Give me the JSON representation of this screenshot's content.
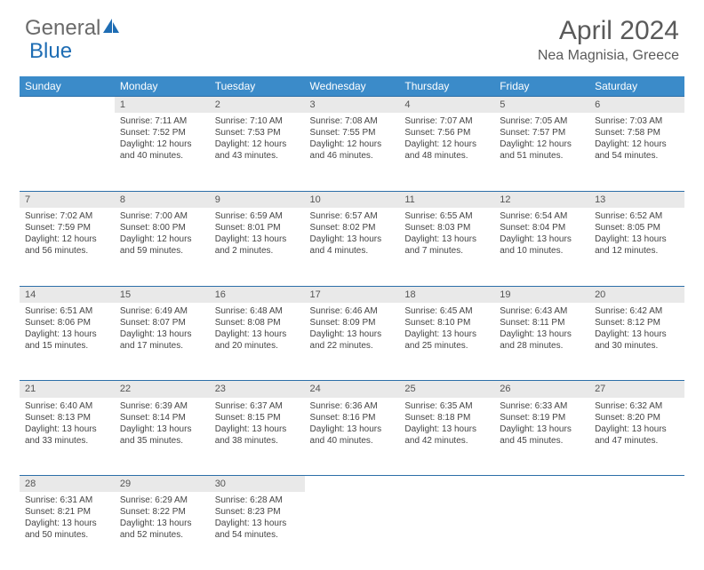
{
  "logo": {
    "general": "General",
    "blue": "Blue"
  },
  "title": "April 2024",
  "location": "Nea Magnisia, Greece",
  "colors": {
    "header_bg": "#3b8bc9",
    "row_divider": "#2c6fa8",
    "daynum_bg": "#e9e9e9",
    "text": "#444444",
    "logo_blue": "#1e6db4"
  },
  "weekdays": [
    "Sunday",
    "Monday",
    "Tuesday",
    "Wednesday",
    "Thursday",
    "Friday",
    "Saturday"
  ],
  "weeks": [
    {
      "days": [
        null,
        {
          "n": "1",
          "sr": "Sunrise: 7:11 AM",
          "ss": "Sunset: 7:52 PM",
          "d1": "Daylight: 12 hours",
          "d2": "and 40 minutes."
        },
        {
          "n": "2",
          "sr": "Sunrise: 7:10 AM",
          "ss": "Sunset: 7:53 PM",
          "d1": "Daylight: 12 hours",
          "d2": "and 43 minutes."
        },
        {
          "n": "3",
          "sr": "Sunrise: 7:08 AM",
          "ss": "Sunset: 7:55 PM",
          "d1": "Daylight: 12 hours",
          "d2": "and 46 minutes."
        },
        {
          "n": "4",
          "sr": "Sunrise: 7:07 AM",
          "ss": "Sunset: 7:56 PM",
          "d1": "Daylight: 12 hours",
          "d2": "and 48 minutes."
        },
        {
          "n": "5",
          "sr": "Sunrise: 7:05 AM",
          "ss": "Sunset: 7:57 PM",
          "d1": "Daylight: 12 hours",
          "d2": "and 51 minutes."
        },
        {
          "n": "6",
          "sr": "Sunrise: 7:03 AM",
          "ss": "Sunset: 7:58 PM",
          "d1": "Daylight: 12 hours",
          "d2": "and 54 minutes."
        }
      ]
    },
    {
      "days": [
        {
          "n": "7",
          "sr": "Sunrise: 7:02 AM",
          "ss": "Sunset: 7:59 PM",
          "d1": "Daylight: 12 hours",
          "d2": "and 56 minutes."
        },
        {
          "n": "8",
          "sr": "Sunrise: 7:00 AM",
          "ss": "Sunset: 8:00 PM",
          "d1": "Daylight: 12 hours",
          "d2": "and 59 minutes."
        },
        {
          "n": "9",
          "sr": "Sunrise: 6:59 AM",
          "ss": "Sunset: 8:01 PM",
          "d1": "Daylight: 13 hours",
          "d2": "and 2 minutes."
        },
        {
          "n": "10",
          "sr": "Sunrise: 6:57 AM",
          "ss": "Sunset: 8:02 PM",
          "d1": "Daylight: 13 hours",
          "d2": "and 4 minutes."
        },
        {
          "n": "11",
          "sr": "Sunrise: 6:55 AM",
          "ss": "Sunset: 8:03 PM",
          "d1": "Daylight: 13 hours",
          "d2": "and 7 minutes."
        },
        {
          "n": "12",
          "sr": "Sunrise: 6:54 AM",
          "ss": "Sunset: 8:04 PM",
          "d1": "Daylight: 13 hours",
          "d2": "and 10 minutes."
        },
        {
          "n": "13",
          "sr": "Sunrise: 6:52 AM",
          "ss": "Sunset: 8:05 PM",
          "d1": "Daylight: 13 hours",
          "d2": "and 12 minutes."
        }
      ]
    },
    {
      "days": [
        {
          "n": "14",
          "sr": "Sunrise: 6:51 AM",
          "ss": "Sunset: 8:06 PM",
          "d1": "Daylight: 13 hours",
          "d2": "and 15 minutes."
        },
        {
          "n": "15",
          "sr": "Sunrise: 6:49 AM",
          "ss": "Sunset: 8:07 PM",
          "d1": "Daylight: 13 hours",
          "d2": "and 17 minutes."
        },
        {
          "n": "16",
          "sr": "Sunrise: 6:48 AM",
          "ss": "Sunset: 8:08 PM",
          "d1": "Daylight: 13 hours",
          "d2": "and 20 minutes."
        },
        {
          "n": "17",
          "sr": "Sunrise: 6:46 AM",
          "ss": "Sunset: 8:09 PM",
          "d1": "Daylight: 13 hours",
          "d2": "and 22 minutes."
        },
        {
          "n": "18",
          "sr": "Sunrise: 6:45 AM",
          "ss": "Sunset: 8:10 PM",
          "d1": "Daylight: 13 hours",
          "d2": "and 25 minutes."
        },
        {
          "n": "19",
          "sr": "Sunrise: 6:43 AM",
          "ss": "Sunset: 8:11 PM",
          "d1": "Daylight: 13 hours",
          "d2": "and 28 minutes."
        },
        {
          "n": "20",
          "sr": "Sunrise: 6:42 AM",
          "ss": "Sunset: 8:12 PM",
          "d1": "Daylight: 13 hours",
          "d2": "and 30 minutes."
        }
      ]
    },
    {
      "days": [
        {
          "n": "21",
          "sr": "Sunrise: 6:40 AM",
          "ss": "Sunset: 8:13 PM",
          "d1": "Daylight: 13 hours",
          "d2": "and 33 minutes."
        },
        {
          "n": "22",
          "sr": "Sunrise: 6:39 AM",
          "ss": "Sunset: 8:14 PM",
          "d1": "Daylight: 13 hours",
          "d2": "and 35 minutes."
        },
        {
          "n": "23",
          "sr": "Sunrise: 6:37 AM",
          "ss": "Sunset: 8:15 PM",
          "d1": "Daylight: 13 hours",
          "d2": "and 38 minutes."
        },
        {
          "n": "24",
          "sr": "Sunrise: 6:36 AM",
          "ss": "Sunset: 8:16 PM",
          "d1": "Daylight: 13 hours",
          "d2": "and 40 minutes."
        },
        {
          "n": "25",
          "sr": "Sunrise: 6:35 AM",
          "ss": "Sunset: 8:18 PM",
          "d1": "Daylight: 13 hours",
          "d2": "and 42 minutes."
        },
        {
          "n": "26",
          "sr": "Sunrise: 6:33 AM",
          "ss": "Sunset: 8:19 PM",
          "d1": "Daylight: 13 hours",
          "d2": "and 45 minutes."
        },
        {
          "n": "27",
          "sr": "Sunrise: 6:32 AM",
          "ss": "Sunset: 8:20 PM",
          "d1": "Daylight: 13 hours",
          "d2": "and 47 minutes."
        }
      ]
    },
    {
      "days": [
        {
          "n": "28",
          "sr": "Sunrise: 6:31 AM",
          "ss": "Sunset: 8:21 PM",
          "d1": "Daylight: 13 hours",
          "d2": "and 50 minutes."
        },
        {
          "n": "29",
          "sr": "Sunrise: 6:29 AM",
          "ss": "Sunset: 8:22 PM",
          "d1": "Daylight: 13 hours",
          "d2": "and 52 minutes."
        },
        {
          "n": "30",
          "sr": "Sunrise: 6:28 AM",
          "ss": "Sunset: 8:23 PM",
          "d1": "Daylight: 13 hours",
          "d2": "and 54 minutes."
        },
        null,
        null,
        null,
        null
      ]
    }
  ]
}
